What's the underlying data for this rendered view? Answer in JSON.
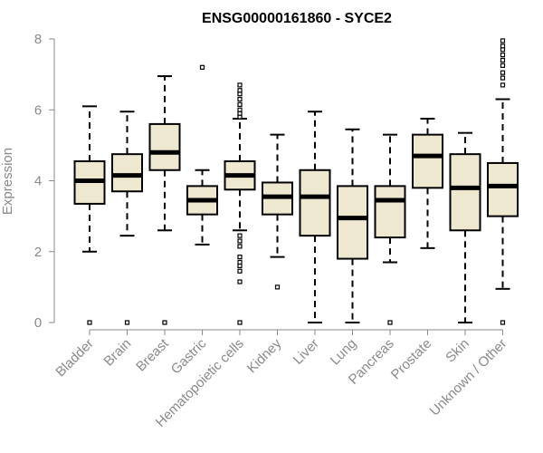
{
  "chart_data": {
    "type": "boxplot",
    "title": "ENSG00000161860 - SYCE2",
    "xlabel": "",
    "ylabel": "Expression",
    "ylim": [
      0,
      8
    ],
    "yticks": [
      0,
      2,
      4,
      6,
      8
    ],
    "grid": false,
    "colors": {
      "box_fill": "#efe8d0",
      "stroke": "#000000",
      "axis": "#8a8a8a"
    },
    "categories": [
      "Bladder",
      "Brain",
      "Breast",
      "Gastric",
      "Hematopoietic cells",
      "Kidney",
      "Liver",
      "Lung",
      "Pancreas",
      "Prostate",
      "Skin",
      "Unknown / Other"
    ],
    "boxes": [
      {
        "min": 2.0,
        "q1": 3.35,
        "median": 4.0,
        "q3": 4.55,
        "max": 6.1,
        "outliers": [
          0
        ]
      },
      {
        "min": 2.45,
        "q1": 3.7,
        "median": 4.15,
        "q3": 4.75,
        "max": 5.95,
        "outliers": [
          0
        ]
      },
      {
        "min": 2.6,
        "q1": 4.3,
        "median": 4.8,
        "q3": 5.6,
        "max": 6.95,
        "outliers": [
          0
        ]
      },
      {
        "min": 2.2,
        "q1": 3.05,
        "median": 3.45,
        "q3": 3.85,
        "max": 4.3,
        "outliers": [
          7.2
        ]
      },
      {
        "min": 2.6,
        "q1": 3.75,
        "median": 4.15,
        "q3": 4.55,
        "max": 5.75,
        "outliers": [
          0,
          1.15,
          1.45,
          1.6,
          1.7,
          1.85,
          2.15,
          2.3,
          2.45,
          5.8,
          5.9,
          6.0,
          6.15,
          6.3,
          6.45,
          6.55,
          6.7
        ]
      },
      {
        "min": 1.85,
        "q1": 3.05,
        "median": 3.55,
        "q3": 3.95,
        "max": 5.3,
        "outliers": [
          1.0
        ]
      },
      {
        "min": 0.0,
        "q1": 2.45,
        "median": 3.55,
        "q3": 4.3,
        "max": 5.95,
        "outliers": []
      },
      {
        "min": 0.0,
        "q1": 1.8,
        "median": 2.95,
        "q3": 3.85,
        "max": 5.45,
        "outliers": []
      },
      {
        "min": 1.7,
        "q1": 2.4,
        "median": 3.45,
        "q3": 3.85,
        "max": 5.3,
        "outliers": [
          0
        ]
      },
      {
        "min": 2.1,
        "q1": 3.8,
        "median": 4.7,
        "q3": 5.3,
        "max": 5.75,
        "outliers": []
      },
      {
        "min": 0.0,
        "q1": 2.6,
        "median": 3.8,
        "q3": 4.75,
        "max": 5.35,
        "outliers": []
      },
      {
        "min": 0.95,
        "q1": 3.0,
        "median": 3.85,
        "q3": 4.5,
        "max": 6.3,
        "outliers": [
          0,
          6.7,
          6.9,
          7.05,
          7.25,
          7.4,
          7.55,
          7.7,
          7.8,
          7.95
        ]
      }
    ]
  }
}
